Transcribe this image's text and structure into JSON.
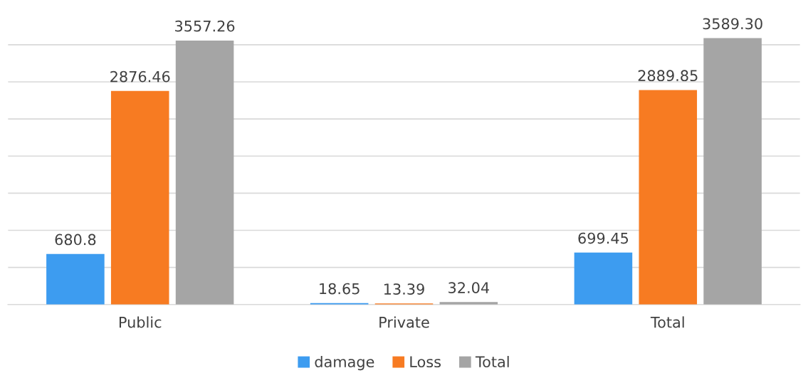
{
  "chart_data": {
    "type": "bar",
    "categories": [
      "Public",
      "Private",
      "Total"
    ],
    "series": [
      {
        "name": "damage",
        "color": "#3d9cf0",
        "values": [
          680.8,
          18.65,
          699.45
        ],
        "value_labels": [
          "680.8",
          "18.65",
          "699.45"
        ]
      },
      {
        "name": "Loss",
        "color": "#f77b22",
        "values": [
          2876.46,
          13.39,
          2889.85
        ],
        "value_labels": [
          "2876.46",
          "13.39",
          "2889.85"
        ]
      },
      {
        "name": "Total",
        "color": "#a5a5a5",
        "values": [
          3557.26,
          32.04,
          3589.3
        ],
        "value_labels": [
          "3557.26",
          "32.04",
          "3589.30"
        ]
      }
    ],
    "data_labels": true,
    "grid": "y",
    "legend": "bottom"
  }
}
